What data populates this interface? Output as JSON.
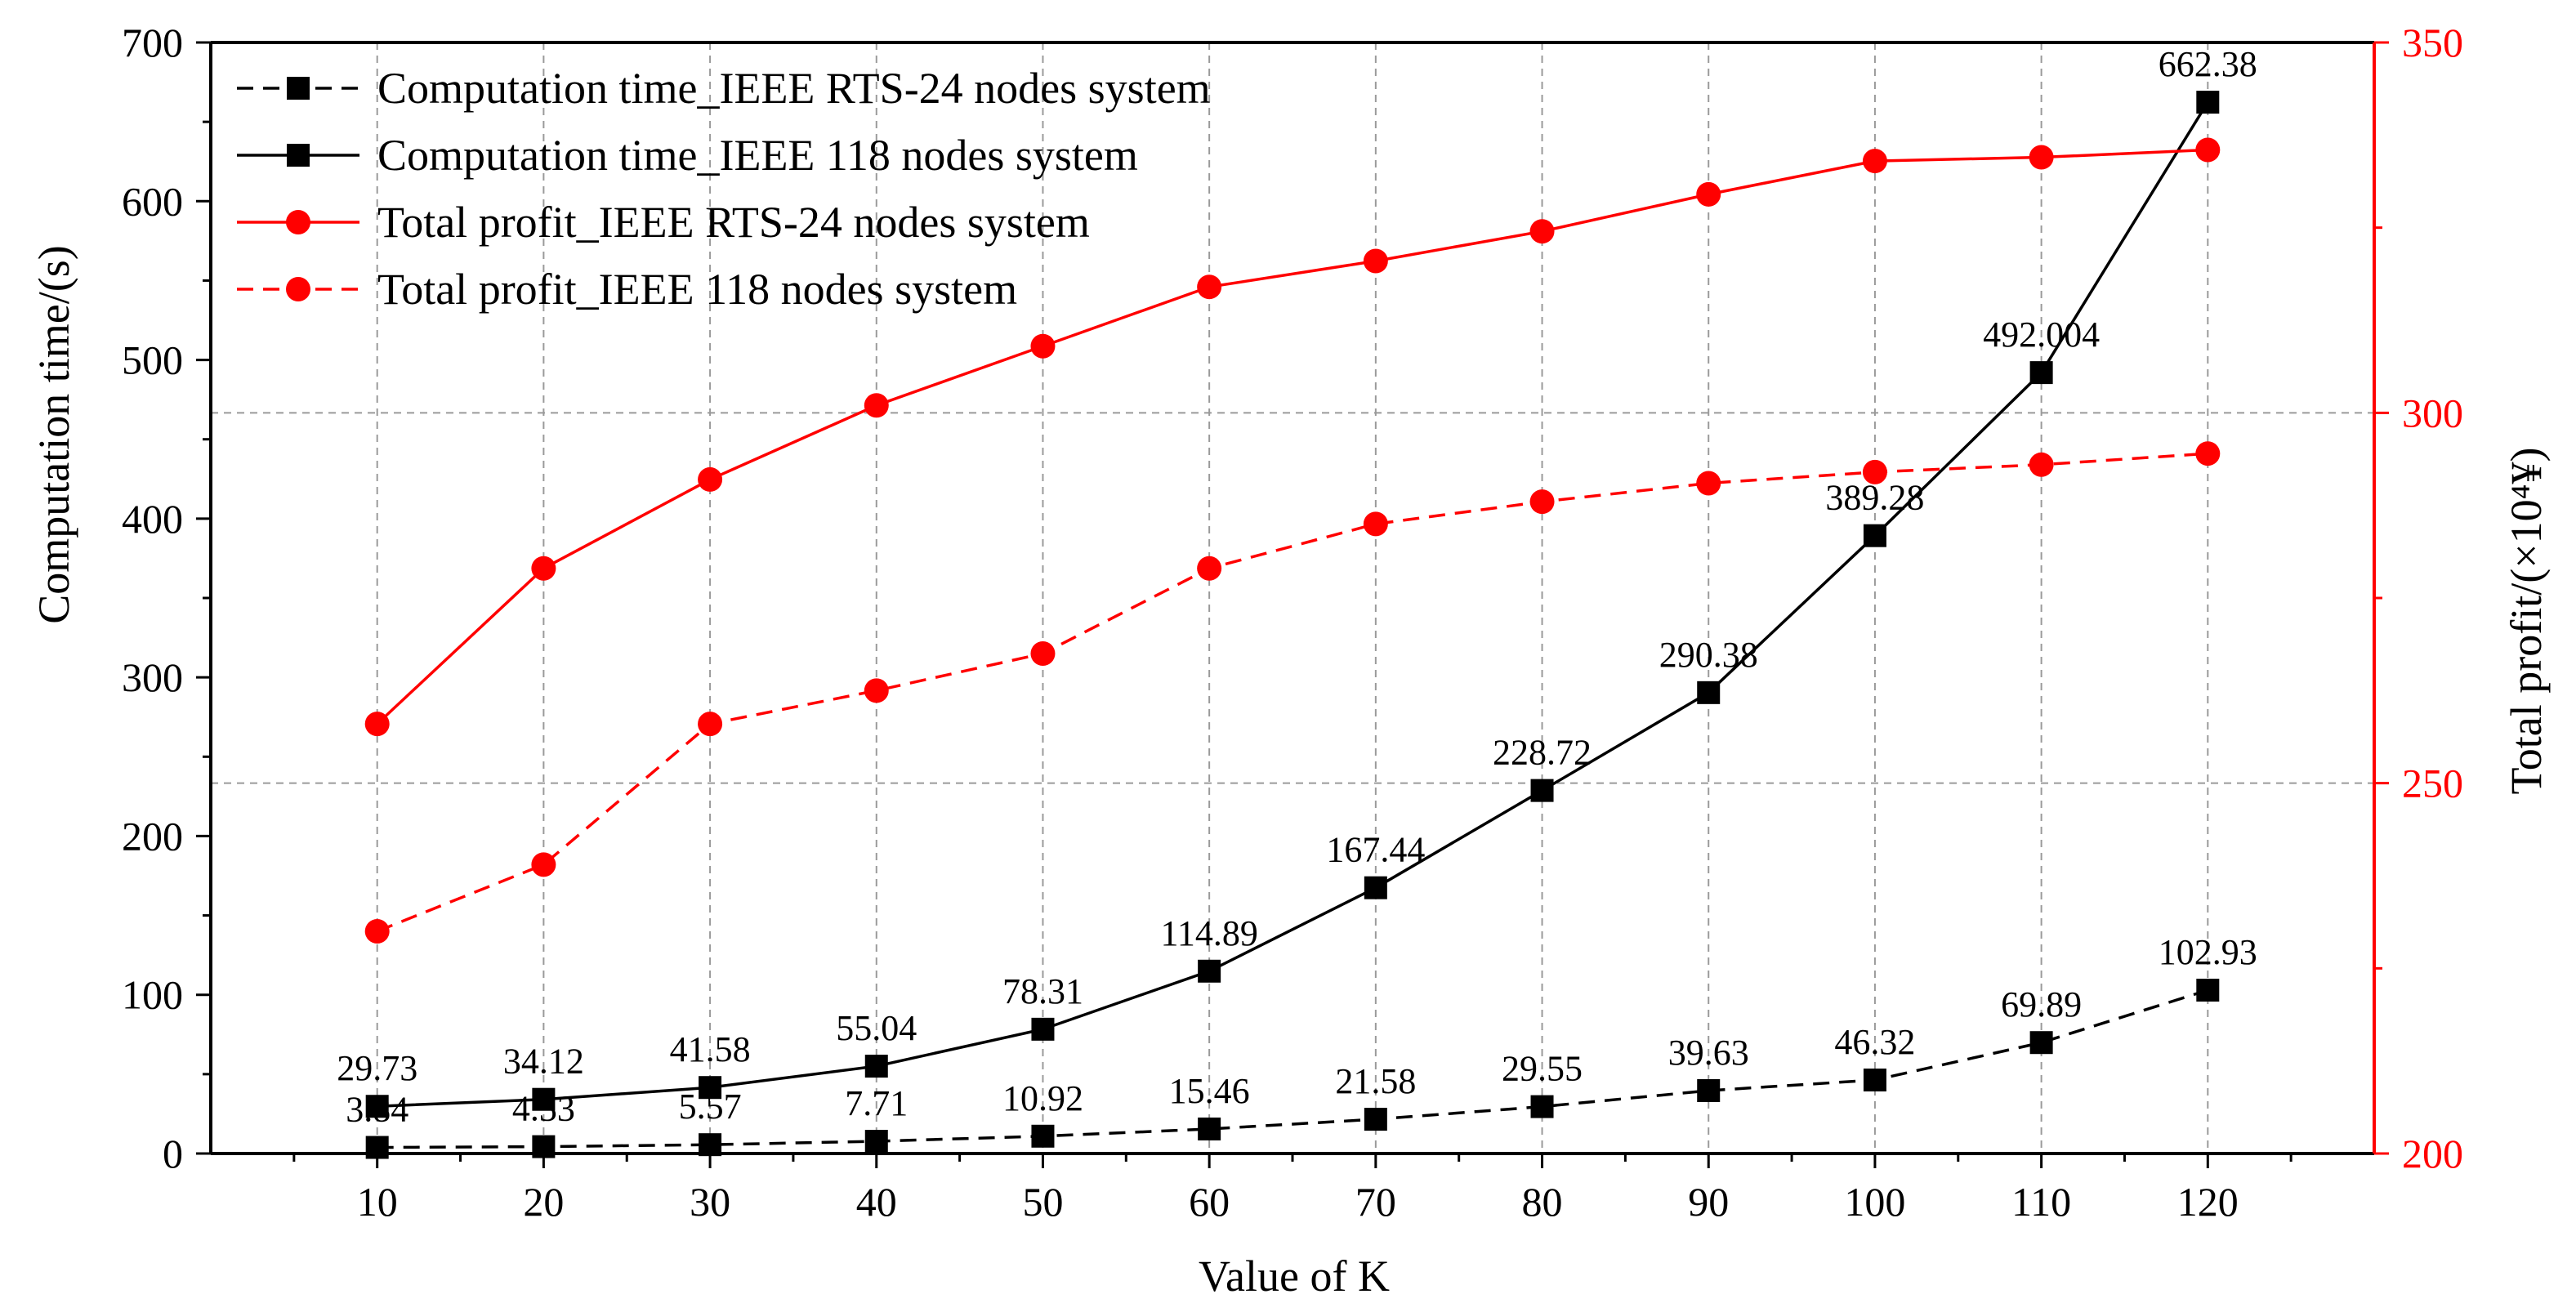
{
  "chart_data": {
    "type": "line",
    "title": "",
    "xlabel": "Value of K",
    "ylabel_left": "Computation time/(s)",
    "ylabel_right": "Total profit/(×10⁴¥)",
    "x": [
      10,
      20,
      30,
      40,
      50,
      60,
      70,
      80,
      90,
      100,
      110,
      120
    ],
    "xlim": [
      0,
      130
    ],
    "ylim_left": [
      0,
      700
    ],
    "ylim_right": [
      200,
      350
    ],
    "yticks_left": [
      0,
      100,
      200,
      300,
      400,
      500,
      600,
      700
    ],
    "yticks_right": [
      200,
      250,
      300,
      350
    ],
    "grid": true,
    "legend_position": "top-left",
    "colors": {
      "black": "#000000",
      "red": "#ff0000",
      "grid": "#9a9a9a"
    },
    "series": [
      {
        "name": "Computation time_IEEE RTS-24 nodes system",
        "axis": "left",
        "color": "#000000",
        "dash": "dashed",
        "marker": "square",
        "values": [
          3.84,
          4.33,
          5.57,
          7.71,
          10.92,
          15.46,
          21.58,
          29.55,
          39.63,
          46.32,
          69.89,
          102.93
        ],
        "labels": [
          "3.84",
          "4.33",
          "5.57",
          "7.71",
          "10.92",
          "15.46",
          "21.58",
          "29.55",
          "39.63",
          "46.32",
          "69.89",
          "102.93"
        ]
      },
      {
        "name": "Computation time_IEEE 118 nodes system",
        "axis": "left",
        "color": "#000000",
        "dash": "solid",
        "marker": "square",
        "values": [
          29.73,
          34.12,
          41.58,
          55.04,
          78.31,
          114.89,
          167.44,
          228.72,
          290.38,
          389.28,
          492.004,
          662.38
        ],
        "labels": [
          "29.73",
          "34.12",
          "41.58",
          "55.04",
          "78.31",
          "114.89",
          "167.44",
          "228.72",
          "290.38",
          "389.28",
          "492.004",
          "662.38"
        ]
      },
      {
        "name": "Total profit_IEEE RTS-24 nodes system",
        "axis": "right",
        "color": "#ff0000",
        "dash": "solid",
        "marker": "circle",
        "values": [
          258,
          279,
          291,
          301,
          309,
          317,
          320.5,
          324.5,
          329.5,
          334,
          334.5,
          335.5
        ]
      },
      {
        "name": "Total profit_IEEE 118 nodes system",
        "axis": "right",
        "color": "#ff0000",
        "dash": "dashed",
        "marker": "circle",
        "values": [
          230,
          239,
          258,
          262.5,
          267.5,
          279,
          285,
          288,
          290.5,
          292,
          293,
          294.5
        ]
      }
    ]
  }
}
